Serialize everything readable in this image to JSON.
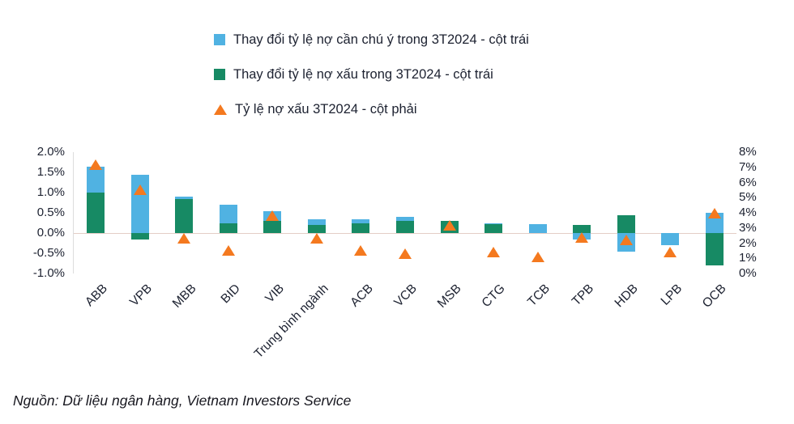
{
  "legend": [
    {
      "label": "Thay đổi tỷ lệ nợ cần chú ý trong 3T2024 - cột trái",
      "marker": "square",
      "color": "#50B2E2"
    },
    {
      "label": "Thay đổi tỷ lệ nợ xấu trong 3T2024 - cột trái",
      "marker": "square",
      "color": "#178A64"
    },
    {
      "label": "Tỷ lệ nợ xấu 3T2024 - cột phải",
      "marker": "triangle",
      "color": "#F4791F"
    }
  ],
  "source": "Nguồn: Dữ liệu ngân hàng, Vietnam Investors Service",
  "chart_data": {
    "type": "bar",
    "subtype": "stacked-bars-with-triangle-markers",
    "title": "",
    "legend_position": "top",
    "grid": "zero-line-only",
    "categories": [
      "ABB",
      "VPB",
      "MBB",
      "BID",
      "VIB",
      "Trung bình ngành",
      "ACB",
      "VCB",
      "MSB",
      "CTG",
      "TCB",
      "TPB",
      "HDB",
      "LPB",
      "OCB"
    ],
    "series": [
      {
        "name": "Thay đổi tỷ lệ nợ cần chú ý trong 3T2024 - cột trái",
        "type": "bar",
        "axis": "left",
        "color": "#50B2E2",
        "values": [
          0.65,
          1.45,
          0.05,
          0.45,
          0.25,
          0.15,
          0.1,
          0.1,
          0,
          0.03,
          0.22,
          -0.15,
          -0.45,
          -0.3,
          0.5
        ]
      },
      {
        "name": "Thay đổi tỷ lệ nợ xấu trong 3T2024 - cột trái",
        "type": "bar",
        "axis": "left",
        "color": "#178A64",
        "values": [
          1.0,
          -0.15,
          0.85,
          0.25,
          0.3,
          0.2,
          0.25,
          0.3,
          0.3,
          0.22,
          0,
          0.2,
          0.45,
          0,
          -0.8
        ]
      },
      {
        "name": "Tỷ lệ nợ xấu 3T2024 - cột phải",
        "type": "scatter",
        "marker": "triangle",
        "axis": "right",
        "color": "#F4791F",
        "values": [
          7.2,
          5.5,
          2.3,
          1.5,
          3.8,
          2.3,
          1.5,
          1.3,
          3.2,
          1.4,
          1.1,
          2.4,
          2.2,
          1.4,
          4.0
        ]
      }
    ],
    "left_axis": {
      "ticks": [
        "2.0%",
        "1.5%",
        "1.0%",
        "0.5%",
        "0.0%",
        "-0.5%",
        "-1.0%"
      ],
      "min": -1.0,
      "max": 2.0,
      "unit": "%"
    },
    "right_axis": {
      "ticks": [
        "8%",
        "7%",
        "6%",
        "5%",
        "4%",
        "3%",
        "2%",
        "1%",
        "0%"
      ],
      "min": 0,
      "max": 8,
      "unit": "%"
    }
  }
}
